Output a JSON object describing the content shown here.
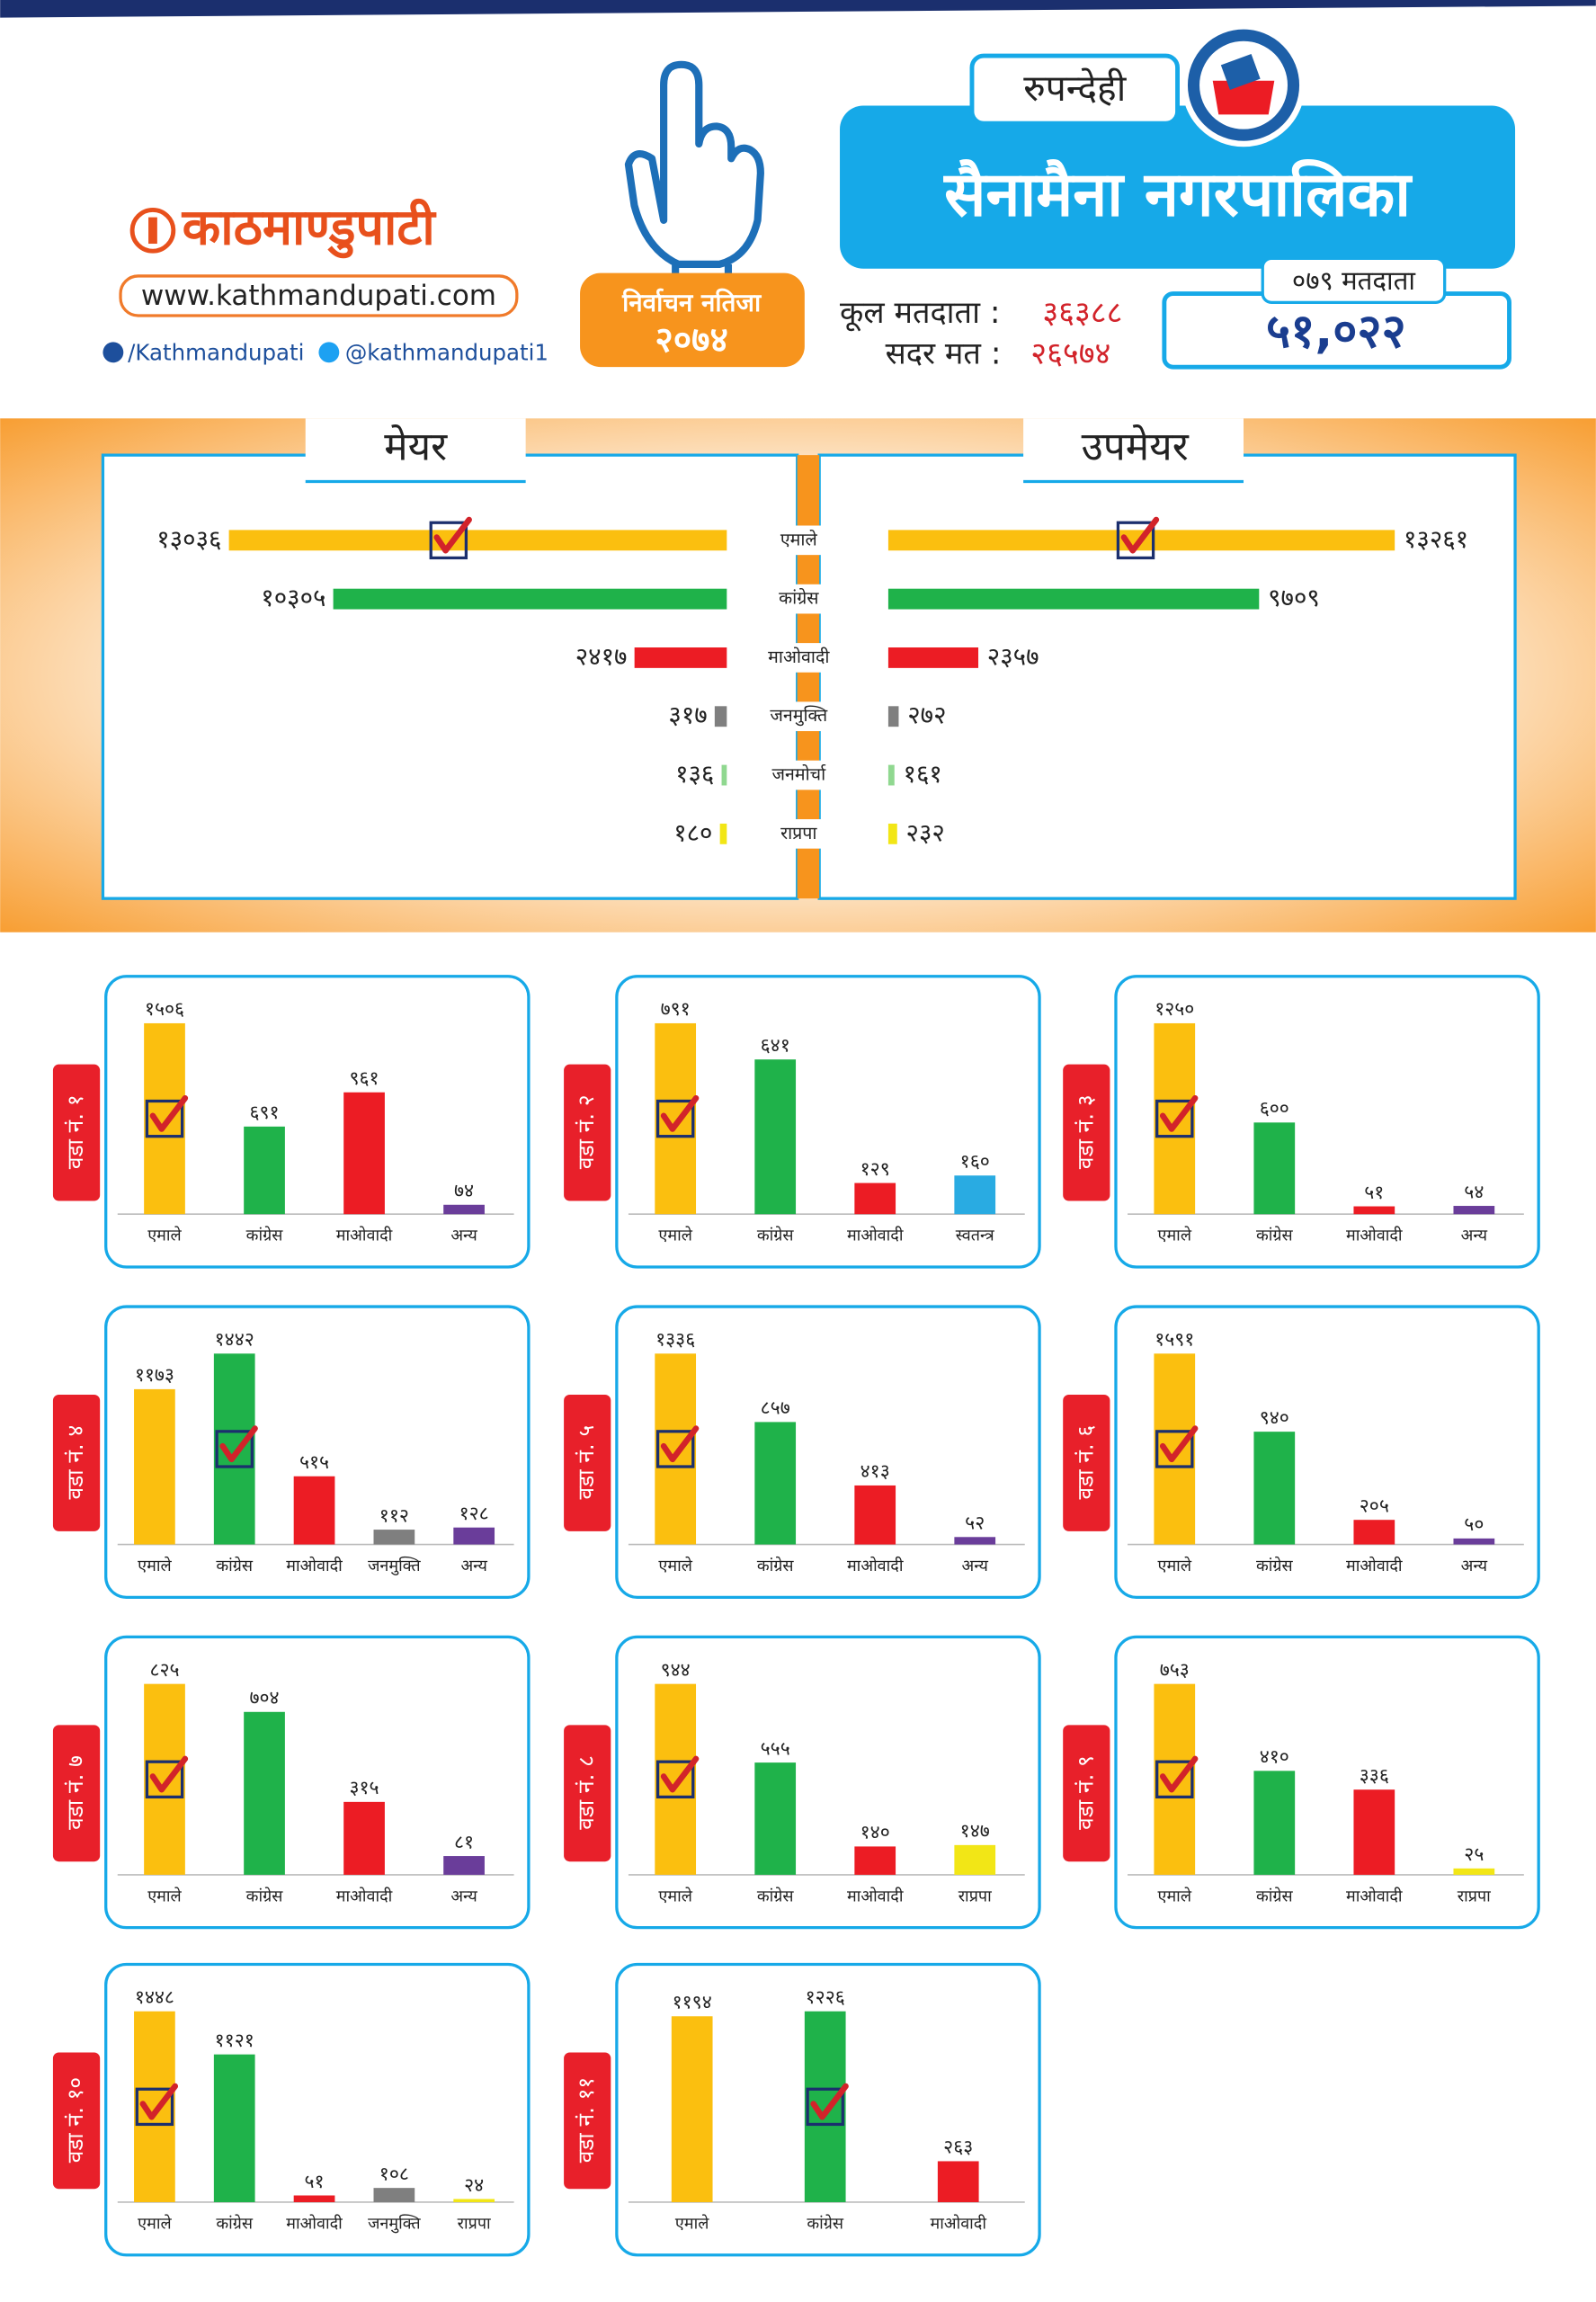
{
  "header": {
    "logo": "काठमाण्डुपाटी",
    "website": "www.kathmandupati.com",
    "facebook": "/Kathmandupati",
    "twitter": "@kathmandupati1",
    "election_label": "निर्वाचन नतिजा",
    "election_year": "२०७४",
    "district": "रुपन्देही",
    "municipality": "सैनामैना नगरपालिका",
    "total_voters_label": "कूल मतदाता :",
    "total_voters": "३६३८८",
    "valid_votes_label": "सदर मत :",
    "valid_votes": "२६५७४",
    "voters_079_label": "०७९ मतदाता",
    "voters_079": "५१,०२२"
  },
  "chart_data": [
    {
      "type": "butterfly",
      "categories": [
        "एमाले",
        "कांग्रेस",
        "माओवादी",
        "जनमुक्ति",
        "जनमोर्चा",
        "राप्रपा"
      ],
      "colors": [
        "#fbbf0f",
        "#1fb24a",
        "#ec1c24",
        "#7f7f7f",
        "#90d890",
        "#f2e616"
      ],
      "series": [
        {
          "name": "मेयर",
          "values": [
            13036,
            10305,
            2417,
            317,
            136,
            180
          ],
          "value_labels": [
            "१३०३६",
            "१०३०५",
            "२४१७",
            "३१७",
            "१३६",
            "१८०"
          ],
          "winner": 0
        },
        {
          "name": "उपमेयर",
          "values": [
            13261,
            9709,
            2357,
            272,
            161,
            232
          ],
          "value_labels": [
            "१३२६१",
            "९७०९",
            "२३५७",
            "२७२",
            "१६१",
            "२३२"
          ],
          "winner": 0
        }
      ]
    },
    {
      "type": "bar",
      "title": "वडा नं. १",
      "categories": [
        "एमाले",
        "कांग्रेस",
        "माओवादी",
        "अन्य"
      ],
      "colors": [
        "#fbbf0f",
        "#1fb24a",
        "#ec1c24",
        "#6a3d9a"
      ],
      "values": [
        1506,
        691,
        961,
        74
      ],
      "value_labels": [
        "१५०६",
        "६९१",
        "९६१",
        "७४"
      ],
      "winner": 0
    },
    {
      "type": "bar",
      "title": "वडा नं. २",
      "categories": [
        "एमाले",
        "कांग्रेस",
        "माओवादी",
        "स्वतन्त्र"
      ],
      "colors": [
        "#fbbf0f",
        "#1fb24a",
        "#ec1c24",
        "#29abe2"
      ],
      "values": [
        791,
        641,
        129,
        160
      ],
      "value_labels": [
        "७९१",
        "६४१",
        "१२९",
        "१६०"
      ],
      "winner": 0
    },
    {
      "type": "bar",
      "title": "वडा नं. ३",
      "categories": [
        "एमाले",
        "कांग्रेस",
        "माओवादी",
        "अन्य"
      ],
      "colors": [
        "#fbbf0f",
        "#1fb24a",
        "#ec1c24",
        "#6a3d9a"
      ],
      "values": [
        1250,
        600,
        51,
        54
      ],
      "value_labels": [
        "१२५०",
        "६००",
        "५१",
        "५४"
      ],
      "winner": 0
    },
    {
      "type": "bar",
      "title": "वडा नं. ४",
      "categories": [
        "एमाले",
        "कांग्रेस",
        "माओवादी",
        "जनमुक्ति",
        "अन्य"
      ],
      "colors": [
        "#fbbf0f",
        "#1fb24a",
        "#ec1c24",
        "#7f7f7f",
        "#6a3d9a"
      ],
      "values": [
        1173,
        1442,
        515,
        112,
        128
      ],
      "value_labels": [
        "११७३",
        "१४४२",
        "५१५",
        "११२",
        "१२८"
      ],
      "winner": 1
    },
    {
      "type": "bar",
      "title": "वडा नं. ५",
      "categories": [
        "एमाले",
        "कांग्रेस",
        "माओवादी",
        "अन्य"
      ],
      "colors": [
        "#fbbf0f",
        "#1fb24a",
        "#ec1c24",
        "#6a3d9a"
      ],
      "values": [
        1336,
        857,
        413,
        52
      ],
      "value_labels": [
        "१३३६",
        "८५७",
        "४१३",
        "५२"
      ],
      "winner": 0
    },
    {
      "type": "bar",
      "title": "वडा नं. ६",
      "categories": [
        "एमाले",
        "कांग्रेस",
        "माओवादी",
        "अन्य"
      ],
      "colors": [
        "#fbbf0f",
        "#1fb24a",
        "#ec1c24",
        "#6a3d9a"
      ],
      "values": [
        1591,
        940,
        205,
        50
      ],
      "value_labels": [
        "१५९१",
        "९४०",
        "२०५",
        "५०"
      ],
      "winner": 0
    },
    {
      "type": "bar",
      "title": "वडा नं. ७",
      "categories": [
        "एमाले",
        "कांग्रेस",
        "माओवादी",
        "अन्य"
      ],
      "colors": [
        "#fbbf0f",
        "#1fb24a",
        "#ec1c24",
        "#6a3d9a"
      ],
      "values": [
        825,
        704,
        315,
        81
      ],
      "value_labels": [
        "८२५",
        "७०४",
        "३१५",
        "८१"
      ],
      "winner": 0
    },
    {
      "type": "bar",
      "title": "वडा नं. ८",
      "categories": [
        "एमाले",
        "कांग्रेस",
        "माओवादी",
        "राप्रपा"
      ],
      "colors": [
        "#fbbf0f",
        "#1fb24a",
        "#ec1c24",
        "#f2e616"
      ],
      "values": [
        944,
        555,
        140,
        147
      ],
      "value_labels": [
        "९४४",
        "५५५",
        "१४०",
        "१४७"
      ],
      "winner": 0
    },
    {
      "type": "bar",
      "title": "वडा नं. ९",
      "categories": [
        "एमाले",
        "कांग्रेस",
        "माओवादी",
        "राप्रपा"
      ],
      "colors": [
        "#fbbf0f",
        "#1fb24a",
        "#ec1c24",
        "#f2e616"
      ],
      "values": [
        753,
        410,
        336,
        25
      ],
      "value_labels": [
        "७५३",
        "४१०",
        "३३६",
        "२५"
      ],
      "winner": 0
    },
    {
      "type": "bar",
      "title": "वडा नं. १०",
      "categories": [
        "एमाले",
        "कांग्रेस",
        "माओवादी",
        "जनमुक्ति",
        "राप्रपा"
      ],
      "colors": [
        "#fbbf0f",
        "#1fb24a",
        "#ec1c24",
        "#7f7f7f",
        "#f2e616"
      ],
      "values": [
        1448,
        1121,
        51,
        108,
        24
      ],
      "value_labels": [
        "१४४८",
        "११२१",
        "५१",
        "१०८",
        "२४"
      ],
      "winner": 0
    },
    {
      "type": "bar",
      "title": "वडा नं. ११",
      "categories": [
        "एमाले",
        "कांग्रेस",
        "माओवादी"
      ],
      "colors": [
        "#fbbf0f",
        "#1fb24a",
        "#ec1c24"
      ],
      "values": [
        1194,
        1226,
        263
      ],
      "value_labels": [
        "११९४",
        "१२२६",
        "२६३"
      ],
      "winner": 1
    }
  ]
}
